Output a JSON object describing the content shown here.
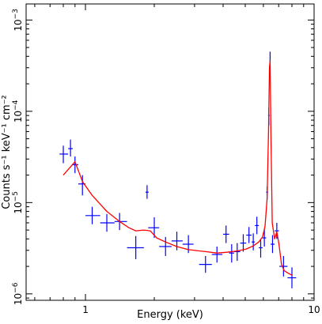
{
  "chart_data": {
    "type": "scatter",
    "xlabel": "Energy (keV)",
    "ylabel": "Counts s⁻¹ keV⁻¹ cm⁻²",
    "x_scale": "log",
    "y_scale": "log",
    "xlim": [
      0.55,
      10
    ],
    "ylim": [
      8.5e-07,
      0.0015
    ],
    "x_tick_labels": [
      {
        "value": 1,
        "label": "1"
      },
      {
        "value": 10,
        "label": "10"
      }
    ],
    "y_tick_labels": [
      {
        "value": 1e-06,
        "base": "10",
        "exp": "−6"
      },
      {
        "value": 1e-05,
        "base": "10",
        "exp": "−5"
      },
      {
        "value": 0.0001,
        "base": "10",
        "exp": "−4"
      },
      {
        "value": 0.001,
        "base": "10",
        "exp": "−3"
      }
    ],
    "colors": {
      "data": "#0000ff",
      "model": "#ff0000",
      "axes": "#000000"
    },
    "series": [
      {
        "type": "errorbars",
        "points": [
          {
            "x": 0.8,
            "xlo": 0.77,
            "xhi": 0.84,
            "y": 3.4e-05,
            "ylo": 2.7e-05,
            "yhi": 4.2e-05
          },
          {
            "x": 0.86,
            "xlo": 0.84,
            "xhi": 0.88,
            "y": 3.9e-05,
            "ylo": 3.2e-05,
            "yhi": 4.9e-05
          },
          {
            "x": 0.9,
            "xlo": 0.88,
            "xhi": 0.93,
            "y": 2.6e-05,
            "ylo": 2.1e-05,
            "yhi": 3.2e-05
          },
          {
            "x": 0.97,
            "xlo": 0.93,
            "xhi": 1.0,
            "y": 1.6e-05,
            "ylo": 1.2e-05,
            "yhi": 2e-05
          },
          {
            "x": 1.07,
            "xlo": 1.0,
            "xhi": 1.16,
            "y": 7.2e-06,
            "ylo": 5.8e-06,
            "yhi": 9e-06
          },
          {
            "x": 1.24,
            "xlo": 1.16,
            "xhi": 1.34,
            "y": 6e-06,
            "ylo": 4.8e-06,
            "yhi": 7.5e-06
          },
          {
            "x": 1.41,
            "xlo": 1.34,
            "xhi": 1.52,
            "y": 6.2e-06,
            "ylo": 5e-06,
            "yhi": 7.7e-06
          },
          {
            "x": 1.66,
            "xlo": 1.52,
            "xhi": 1.8,
            "y": 3.2e-06,
            "ylo": 2.4e-06,
            "yhi": 4.3e-06
          },
          {
            "x": 1.86,
            "xlo": 1.83,
            "xhi": 1.89,
            "y": 1.3e-05,
            "ylo": 1.1e-05,
            "yhi": 1.55e-05
          },
          {
            "x": 2.0,
            "xlo": 1.88,
            "xhi": 2.1,
            "y": 5.3e-06,
            "ylo": 4.1e-06,
            "yhi": 6.9e-06
          },
          {
            "x": 2.24,
            "xlo": 2.1,
            "xhi": 2.38,
            "y": 3.3e-06,
            "ylo": 2.6e-06,
            "yhi": 4.2e-06
          },
          {
            "x": 2.51,
            "xlo": 2.38,
            "xhi": 2.66,
            "y": 3.8e-06,
            "ylo": 3e-06,
            "yhi": 4.8e-06
          },
          {
            "x": 2.82,
            "xlo": 2.66,
            "xhi": 2.97,
            "y": 3.5e-06,
            "ylo": 2.8e-06,
            "yhi": 4.4e-06
          },
          {
            "x": 3.35,
            "xlo": 3.14,
            "xhi": 3.57,
            "y": 2.1e-06,
            "ylo": 1.7e-06,
            "yhi": 2.6e-06
          },
          {
            "x": 3.76,
            "xlo": 3.57,
            "xhi": 3.97,
            "y": 2.7e-06,
            "ylo": 2.2e-06,
            "yhi": 3.3e-06
          },
          {
            "x": 4.12,
            "xlo": 4.0,
            "xhi": 4.25,
            "y": 4.5e-06,
            "ylo": 3.6e-06,
            "yhi": 5.6e-06
          },
          {
            "x": 4.36,
            "xlo": 4.25,
            "xhi": 4.47,
            "y": 2.8e-06,
            "ylo": 2.2e-06,
            "yhi": 3.5e-06
          },
          {
            "x": 4.61,
            "xlo": 4.47,
            "xhi": 4.75,
            "y": 2.9e-06,
            "ylo": 2.3e-06,
            "yhi": 3.6e-06
          },
          {
            "x": 4.9,
            "xlo": 4.75,
            "xhi": 5.05,
            "y": 3.6e-06,
            "ylo": 2.9e-06,
            "yhi": 4.5e-06
          },
          {
            "x": 5.19,
            "xlo": 5.05,
            "xhi": 5.33,
            "y": 4.4e-06,
            "ylo": 3.6e-06,
            "yhi": 5.4e-06
          },
          {
            "x": 5.42,
            "xlo": 5.33,
            "xhi": 5.51,
            "y": 3.7e-06,
            "ylo": 3e-06,
            "yhi": 4.6e-06
          },
          {
            "x": 5.62,
            "xlo": 5.51,
            "xhi": 5.73,
            "y": 5.6e-06,
            "ylo": 4.5e-06,
            "yhi": 7e-06
          },
          {
            "x": 5.84,
            "xlo": 5.73,
            "xhi": 5.95,
            "y": 3.2e-06,
            "ylo": 2.5e-06,
            "yhi": 4e-06
          },
          {
            "x": 6.06,
            "xlo": 5.95,
            "xhi": 6.17,
            "y": 4.1e-06,
            "ylo": 3.3e-06,
            "yhi": 5.1e-06
          },
          {
            "x": 6.23,
            "xlo": 6.17,
            "xhi": 6.29,
            "y": 1.3e-05,
            "ylo": 1.08e-05,
            "yhi": 1.5e-05
          },
          {
            "x": 6.34,
            "xlo": 6.29,
            "xhi": 6.39,
            "y": 9e-05,
            "ylo": 7e-05,
            "yhi": 0.00011
          },
          {
            "x": 6.42,
            "xlo": 6.39,
            "xhi": 6.45,
            "y": 0.00036,
            "ylo": 0.00032,
            "yhi": 0.00045
          },
          {
            "x": 6.58,
            "xlo": 6.45,
            "xhi": 6.72,
            "y": 3.5e-06,
            "ylo": 2.8e-06,
            "yhi": 4.4e-06
          },
          {
            "x": 6.87,
            "xlo": 6.72,
            "xhi": 7.02,
            "y": 4.9e-06,
            "ylo": 4e-06,
            "yhi": 6e-06
          },
          {
            "x": 7.35,
            "xlo": 7.05,
            "xhi": 7.65,
            "y": 2e-06,
            "ylo": 1.55e-06,
            "yhi": 2.6e-06
          },
          {
            "x": 8.0,
            "xlo": 7.65,
            "xhi": 8.35,
            "y": 1.5e-06,
            "ylo": 1.15e-06,
            "yhi": 1.95e-06
          }
        ]
      },
      {
        "type": "line",
        "points": [
          [
            0.8,
            2e-05
          ],
          [
            0.9,
            2.8e-05
          ],
          [
            0.97,
            1.7e-05
          ],
          [
            1.07,
            1.2e-05
          ],
          [
            1.24,
            8e-06
          ],
          [
            1.41,
            6.2e-06
          ],
          [
            1.55,
            5.3e-06
          ],
          [
            1.66,
            4.9e-06
          ],
          [
            1.8,
            5e-06
          ],
          [
            1.92,
            4.9e-06
          ],
          [
            2.05,
            4.1e-06
          ],
          [
            2.24,
            3.7e-06
          ],
          [
            2.51,
            3.3e-06
          ],
          [
            2.82,
            3.05e-06
          ],
          [
            3.35,
            2.9e-06
          ],
          [
            3.76,
            2.8e-06
          ],
          [
            4.12,
            2.85e-06
          ],
          [
            4.61,
            2.95e-06
          ],
          [
            5.05,
            3.1e-06
          ],
          [
            5.42,
            3.35e-06
          ],
          [
            5.73,
            3.7e-06
          ],
          [
            5.95,
            4.2e-06
          ],
          [
            6.1,
            5.5e-06
          ],
          [
            6.23,
            1.1e-05
          ],
          [
            6.32,
            6e-05
          ],
          [
            6.38,
            0.0003
          ],
          [
            6.42,
            0.00036
          ],
          [
            6.47,
            6e-05
          ],
          [
            6.56,
            6e-06
          ],
          [
            6.72,
            4e-06
          ],
          [
            6.87,
            4.8e-06
          ],
          [
            7.02,
            3.5e-06
          ],
          [
            7.2,
            2.1e-06
          ],
          [
            7.4,
            1.8e-06
          ],
          [
            7.65,
            1.7e-06
          ],
          [
            8.0,
            1.6e-06
          ]
        ]
      }
    ]
  }
}
